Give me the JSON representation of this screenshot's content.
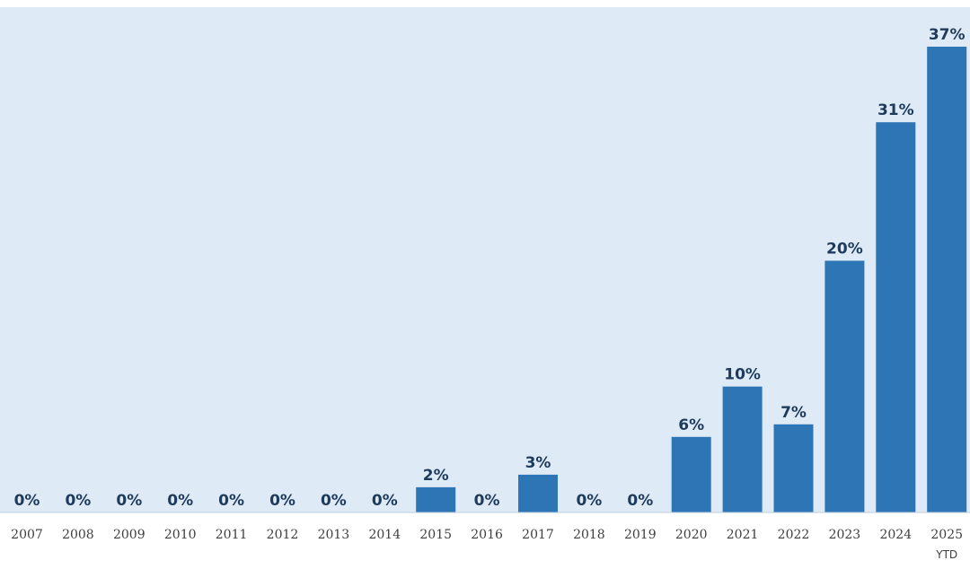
{
  "chart_data": {
    "type": "bar",
    "title": "",
    "xlabel": "",
    "ylabel": "",
    "categories": [
      "2007",
      "2008",
      "2009",
      "2010",
      "2011",
      "2012",
      "2013",
      "2014",
      "2015",
      "2016",
      "2017",
      "2018",
      "2019",
      "2020",
      "2021",
      "2022",
      "2023",
      "2024",
      "2025"
    ],
    "category_sublabels": [
      "",
      "",
      "",
      "",
      "",
      "",
      "",
      "",
      "",
      "",
      "",
      "",
      "",
      "",
      "",
      "",
      "",
      "",
      "YTD"
    ],
    "values": [
      0,
      0,
      0,
      0,
      0,
      0,
      0,
      0,
      2,
      0,
      3,
      0,
      0,
      6,
      10,
      7,
      20,
      31,
      37
    ],
    "value_labels": [
      "0%",
      "0%",
      "0%",
      "0%",
      "0%",
      "0%",
      "0%",
      "0%",
      "2%",
      "0%",
      "3%",
      "0%",
      "0%",
      "6%",
      "10%",
      "7%",
      "20%",
      "31%",
      "37%"
    ],
    "unit": "%",
    "ylim": [
      0,
      37
    ],
    "grid": false,
    "legend": "none",
    "colors": {
      "bar": "#2e75b6",
      "plot_background": "#deeaf6",
      "axis_line": "#bfcfdf",
      "value_label": "#1f3b5c",
      "tick_label": "#3f3f3f"
    }
  }
}
